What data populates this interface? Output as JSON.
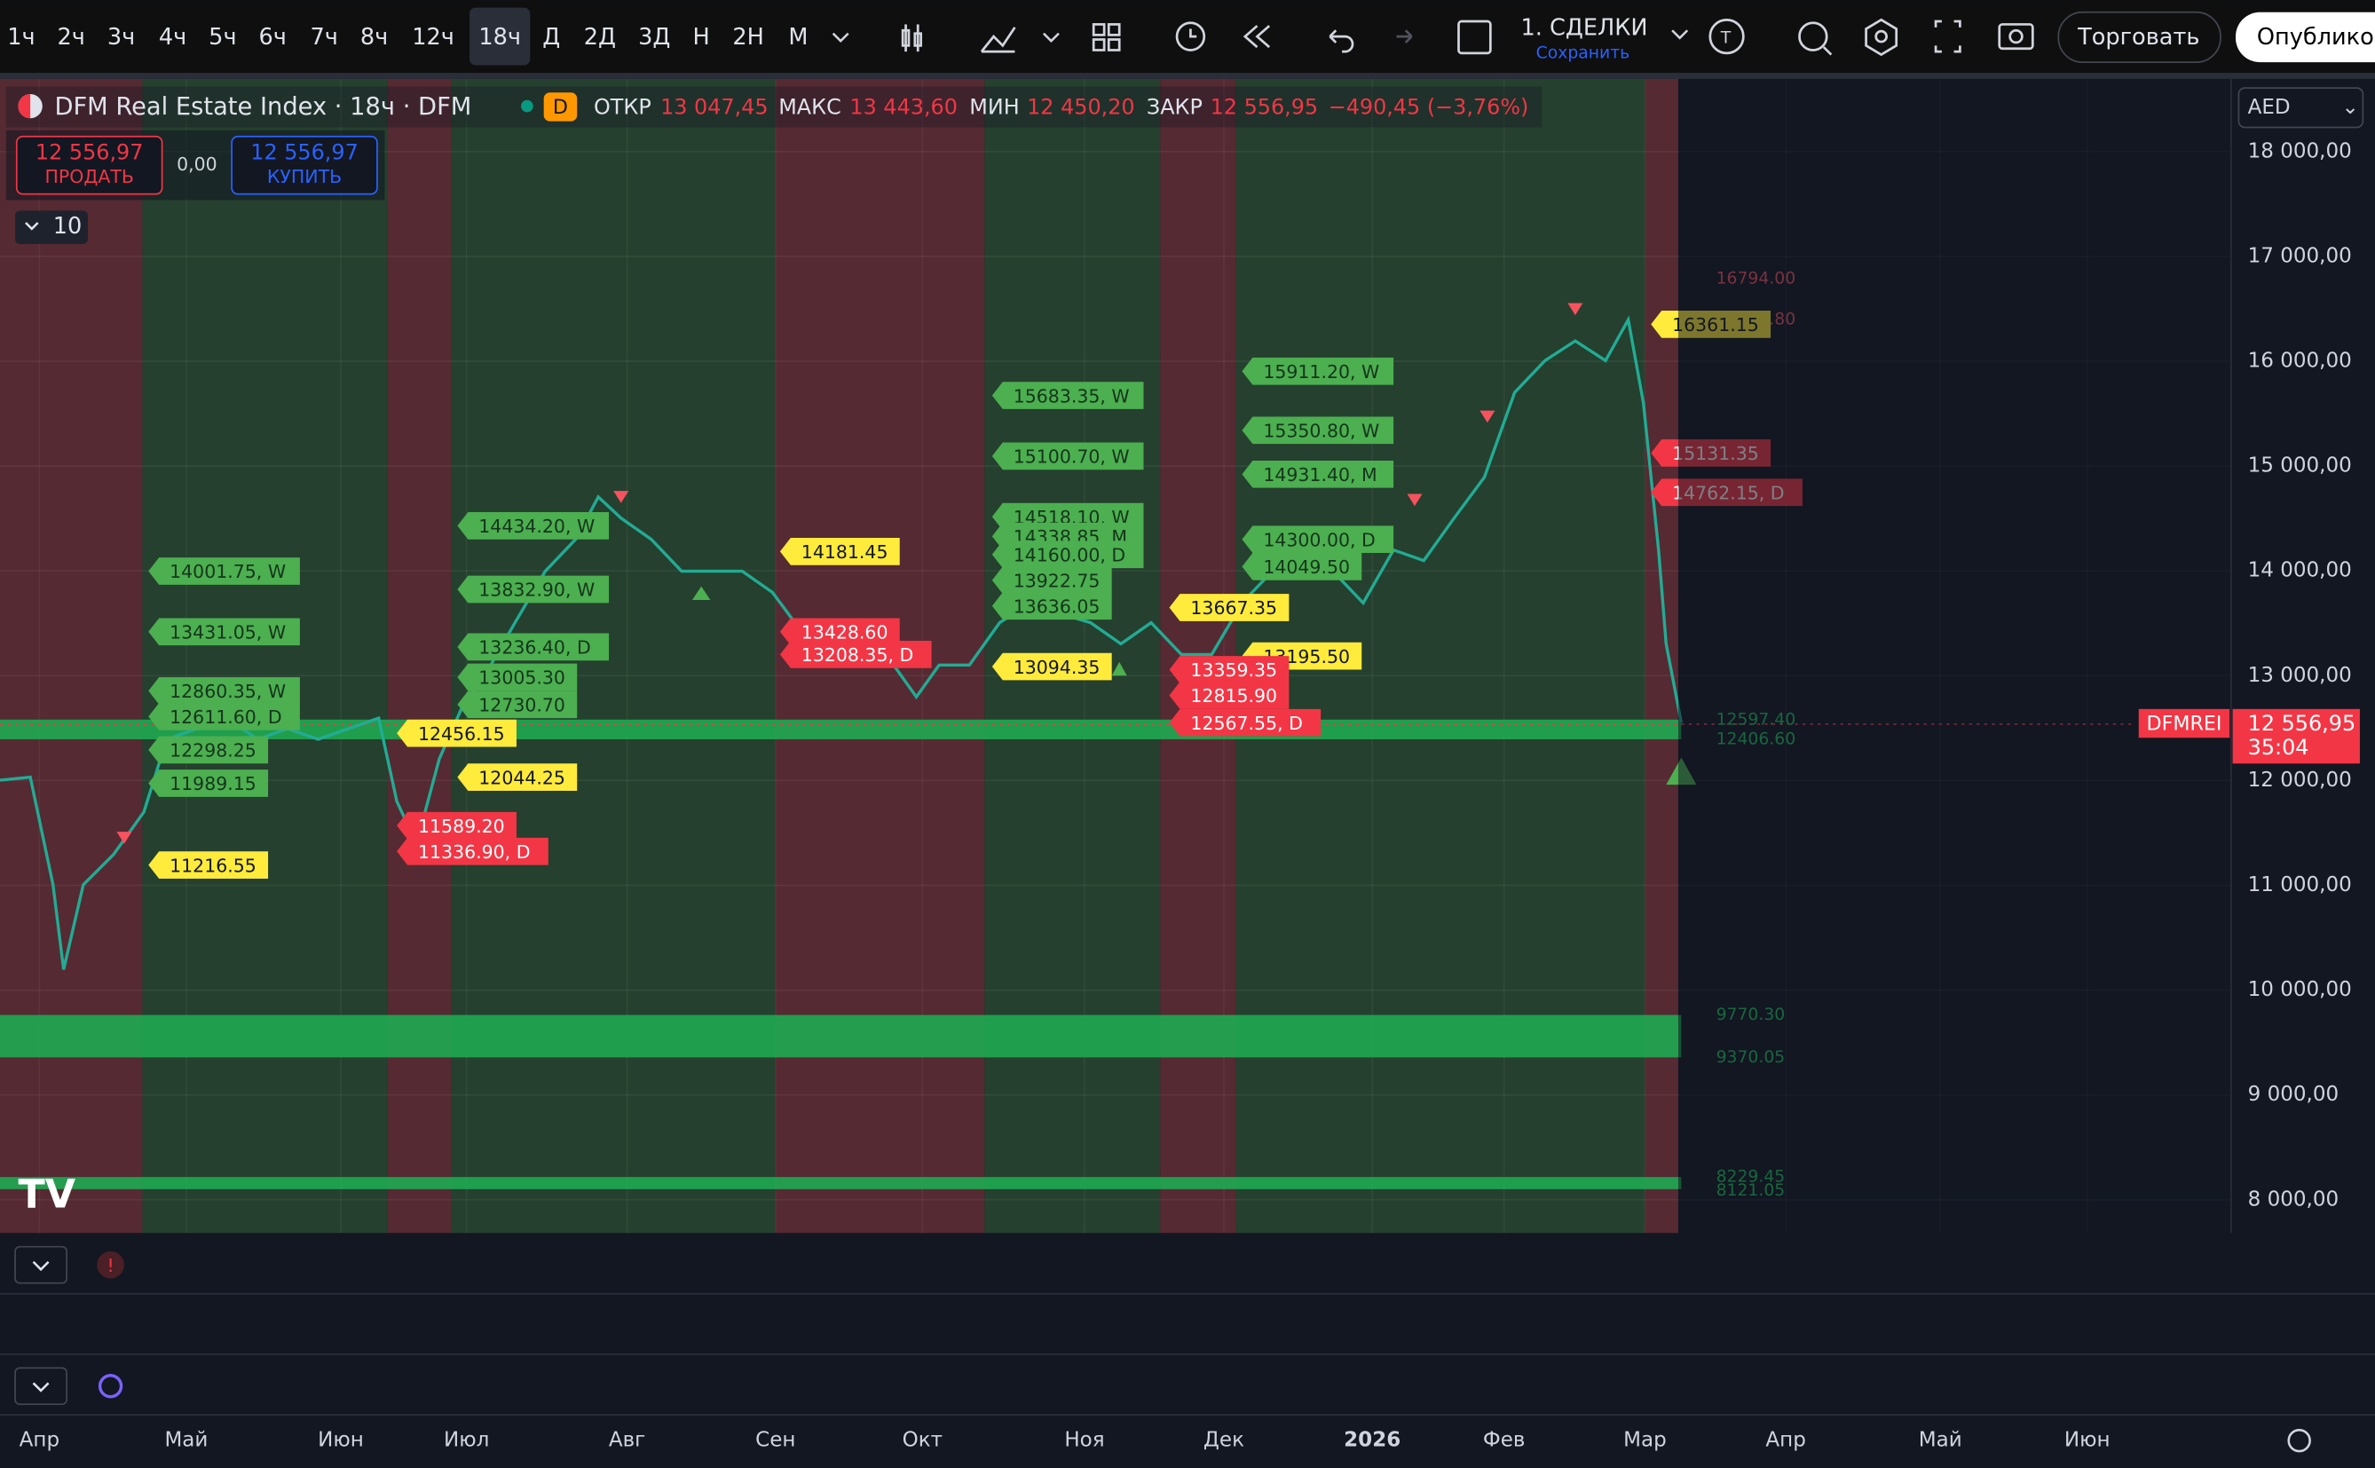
{
  "toolbar": {
    "intervals": [
      "1ч",
      "2ч",
      "3ч",
      "4ч",
      "5ч",
      "6ч",
      "7ч",
      "8ч",
      "12ч",
      "18ч",
      "Д",
      "2Д",
      "3Д",
      "Н",
      "2Н",
      "М"
    ],
    "layout_name": "1. СДЕЛКИ",
    "save": "Сохранить",
    "trade": "Торговать",
    "publish": "Опубликовать"
  },
  "legend": {
    "symbol": "DFM Real Estate Index · 18ч · DFM",
    "badge": "D",
    "open_label": "ОТКР",
    "open": "13 047,45",
    "high_label": "МАКС",
    "high": "13 443,60",
    "low_label": "МИН",
    "low": "12 450,20",
    "close_label": "ЗАКР",
    "close": "12 556,95",
    "change": "−490,45 (−3,76%)"
  },
  "order": {
    "sell_price": "12 556,97",
    "sell": "ПРОДАТЬ",
    "spread": "0,00",
    "buy_price": "12 556,97",
    "buy": "КУПИТЬ"
  },
  "indicator_count": "10",
  "currency": "AED",
  "price_axis": [
    "18 000,00",
    "17 000,00",
    "16 000,00",
    "15 000,00",
    "14 000,00",
    "13 000,00",
    "12 000,00",
    "11 000,00",
    "10 000,00",
    "9 000,00",
    "8 000,00"
  ],
  "price_tag": {
    "symbol": "DFMREI",
    "price": "12 556,95",
    "countdown": "35:04"
  },
  "level_labels": {
    "green": [
      "14001.75, W",
      "13431.05, W",
      "12860.35, W",
      "12611.60, D",
      "12298.25",
      "11989.15",
      "14434.20, W",
      "13832.90, W",
      "13236.40, D",
      "13005.30",
      "12730.70",
      "15683.35, W",
      "15100.70, W",
      "14518.10, W",
      "14338.85, M",
      "14160.00, D",
      "13922.75",
      "13636.05",
      "15911.20, W",
      "15350.80, W",
      "14931.40, M",
      "14300.00, D",
      "14049.50"
    ],
    "yellow": [
      "11216.55",
      "12456.15",
      "12044.25",
      "14181.45",
      "13094.35",
      "13667.35",
      "13195.50",
      "16361.15"
    ],
    "red": [
      "11589.20",
      "11336.90, D",
      "13428.60",
      "13208.35, D",
      "13359.35",
      "12815.90",
      "12567.55, D",
      "15131.35",
      "14762.15, D"
    ]
  },
  "zone_labels": [
    "16794.00",
    "16594.80",
    "12597.40",
    "12406.60",
    "9770.30",
    "9370.05",
    "8229.45",
    "8121.05"
  ],
  "time_axis": [
    "Апр",
    "Май",
    "Июн",
    "Июл",
    "Авг",
    "Сен",
    "Окт",
    "Ноя",
    "Дек",
    "2026",
    "Фев",
    "Мар",
    "Апр",
    "Май",
    "Июн"
  ]
}
